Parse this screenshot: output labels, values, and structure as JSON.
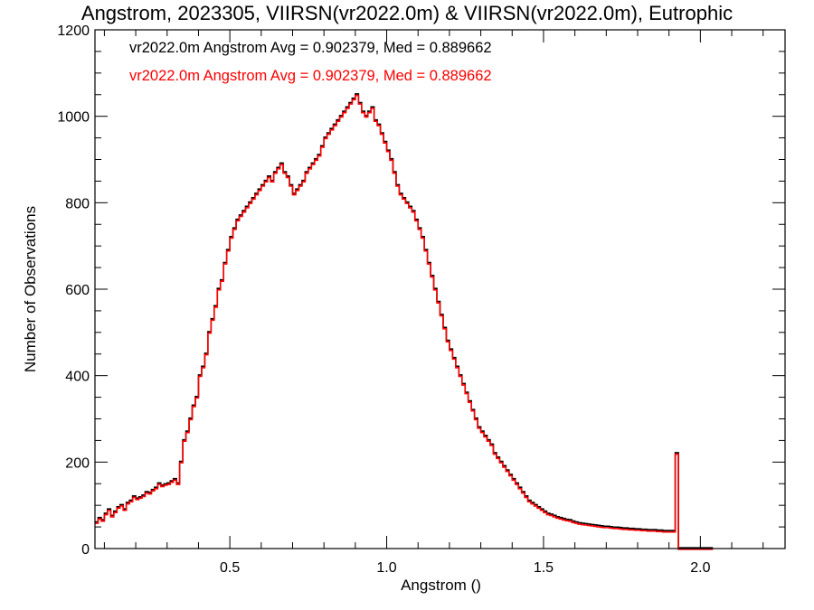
{
  "chart_data": {
    "type": "histogram",
    "title": "Angstrom, 2023305, VIIRSN(vr2022.0m) & VIIRSN(vr2022.0m), Eutrophic",
    "xlabel": "Angstrom ()",
    "ylabel": "Number of Observations",
    "xlim": [
      0.07,
      2.27
    ],
    "ylim": [
      0,
      1200
    ],
    "xticks": [
      0.5,
      1.0,
      1.5,
      2.0
    ],
    "xtick_labels": [
      "0.5",
      "1.0",
      "1.5",
      "2.0"
    ],
    "yticks": [
      0,
      200,
      400,
      600,
      800,
      1000,
      1200
    ],
    "ytick_labels": [
      "0",
      "200",
      "400",
      "600",
      "800",
      "1000",
      "1200"
    ],
    "grid": false,
    "bin_width": 0.01,
    "x_start": 0.07,
    "annotations": [
      {
        "text": "vr2022.0m Angstrom Avg = 0.902379, Med = 0.889662",
        "color": "#000000"
      },
      {
        "text": "vr2022.0m Angstrom Avg = 0.902379, Med = 0.889662",
        "color": "#ff0000"
      }
    ],
    "series": [
      {
        "name": "vr2022.0m",
        "color": "#000000",
        "values": [
          60,
          70,
          65,
          80,
          90,
          75,
          85,
          95,
          100,
          90,
          105,
          110,
          120,
          115,
          118,
          122,
          130,
          128,
          135,
          140,
          150,
          145,
          148,
          150,
          155,
          160,
          150,
          200,
          250,
          270,
          300,
          330,
          350,
          400,
          420,
          450,
          500,
          530,
          560,
          600,
          620,
          660,
          690,
          720,
          740,
          760,
          770,
          780,
          790,
          800,
          810,
          820,
          830,
          840,
          850,
          860,
          850,
          870,
          880,
          890,
          870,
          860,
          840,
          820,
          830,
          840,
          850,
          870,
          880,
          890,
          900,
          910,
          930,
          950,
          960,
          970,
          980,
          990,
          1000,
          1010,
          1020,
          1030,
          1040,
          1050,
          1030,
          1010,
          1000,
          1010,
          1020,
          990,
          980,
          960,
          940,
          920,
          900,
          870,
          840,
          820,
          810,
          800,
          790,
          780,
          760,
          740,
          720,
          690,
          660,
          630,
          600,
          570,
          540,
          510,
          480,
          460,
          440,
          420,
          400,
          380,
          360,
          340,
          320,
          300,
          280,
          270,
          260,
          250,
          240,
          220,
          210,
          200,
          190,
          180,
          170,
          160,
          150,
          140,
          130,
          120,
          110,
          105,
          100,
          95,
          90,
          85,
          80,
          78,
          75,
          72,
          70,
          68,
          66,
          65,
          62,
          60,
          58,
          57,
          56,
          55,
          54,
          53,
          52,
          51,
          50,
          50,
          49,
          48,
          48,
          47,
          46,
          46,
          45,
          45,
          44,
          44,
          43,
          43,
          42,
          42,
          42,
          41,
          41,
          40,
          40,
          40,
          40,
          220,
          0,
          0,
          0,
          0,
          0,
          0,
          0,
          0,
          0,
          0,
          0
        ]
      },
      {
        "name": "vr2022.0m",
        "color": "#ff0000",
        "values": [
          60,
          70,
          65,
          80,
          90,
          75,
          85,
          95,
          100,
          90,
          105,
          110,
          120,
          115,
          118,
          122,
          130,
          128,
          135,
          140,
          150,
          145,
          148,
          150,
          155,
          160,
          150,
          200,
          250,
          270,
          300,
          330,
          350,
          400,
          420,
          450,
          500,
          530,
          560,
          600,
          620,
          660,
          690,
          720,
          740,
          760,
          770,
          780,
          790,
          800,
          810,
          820,
          830,
          840,
          850,
          860,
          850,
          870,
          880,
          890,
          870,
          860,
          840,
          820,
          830,
          840,
          850,
          870,
          880,
          890,
          900,
          910,
          930,
          950,
          960,
          970,
          980,
          990,
          1000,
          1010,
          1020,
          1030,
          1040,
          1050,
          1030,
          1010,
          1000,
          1010,
          1020,
          990,
          980,
          960,
          940,
          920,
          900,
          870,
          840,
          820,
          810,
          800,
          790,
          780,
          760,
          740,
          720,
          690,
          660,
          630,
          600,
          570,
          540,
          510,
          480,
          460,
          440,
          420,
          400,
          380,
          360,
          340,
          320,
          300,
          280,
          270,
          260,
          250,
          240,
          220,
          210,
          200,
          190,
          180,
          170,
          160,
          150,
          140,
          130,
          120,
          110,
          105,
          100,
          95,
          90,
          85,
          80,
          78,
          75,
          72,
          70,
          68,
          66,
          65,
          62,
          60,
          58,
          57,
          56,
          55,
          54,
          53,
          52,
          51,
          50,
          50,
          49,
          48,
          48,
          47,
          46,
          46,
          45,
          45,
          44,
          44,
          43,
          43,
          42,
          42,
          42,
          41,
          41,
          40,
          40,
          40,
          40,
          220,
          0,
          0,
          0,
          0,
          0,
          0,
          0,
          0,
          0,
          0,
          0
        ]
      }
    ]
  }
}
